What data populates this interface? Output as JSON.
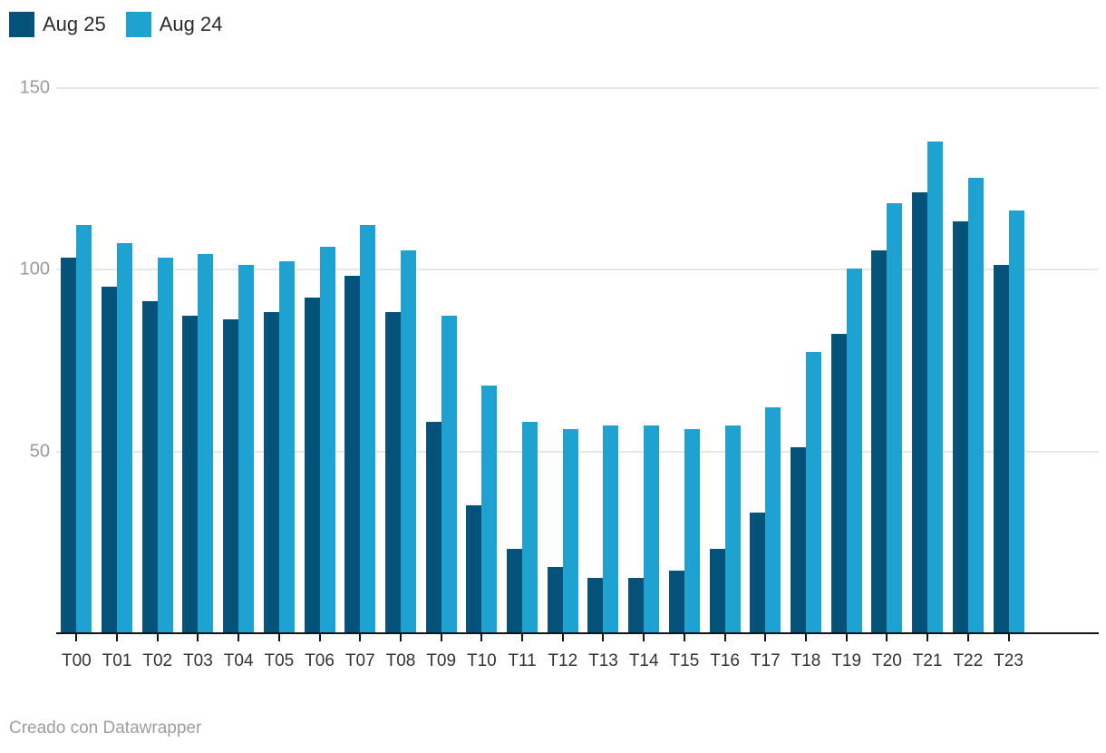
{
  "legend": {
    "items": [
      {
        "label": "Aug 25",
        "color": "#05527A"
      },
      {
        "label": "Aug 24",
        "color": "#1EA2D2"
      }
    ]
  },
  "footer": {
    "text": "Creado con Datawrapper"
  },
  "chart_data": {
    "type": "bar",
    "grouped": true,
    "title": "",
    "xlabel": "",
    "ylabel": "",
    "categories": [
      "T00",
      "T01",
      "T02",
      "T03",
      "T04",
      "T05",
      "T06",
      "T07",
      "T08",
      "T09",
      "T10",
      "T11",
      "T12",
      "T13",
      "T14",
      "T15",
      "T16",
      "T17",
      "T18",
      "T19",
      "T20",
      "T21",
      "T22",
      "T23"
    ],
    "series": [
      {
        "name": "Aug 25",
        "color": "#05527A",
        "values": [
          103,
          95,
          91,
          87,
          86,
          88,
          92,
          98,
          88,
          58,
          35,
          23,
          18,
          15,
          15,
          17,
          23,
          33,
          51,
          82,
          105,
          121,
          113,
          101
        ]
      },
      {
        "name": "Aug 24",
        "color": "#1EA2D2",
        "values": [
          112,
          107,
          103,
          104,
          101,
          102,
          106,
          112,
          105,
          87,
          68,
          58,
          56,
          57,
          57,
          56,
          57,
          62,
          77,
          100,
          118,
          135,
          125,
          116
        ]
      }
    ],
    "ylim": [
      0,
      150
    ],
    "yticks": [
      50,
      100,
      150
    ],
    "grid": "horizontal",
    "legend_position": "top-left",
    "attribution": "Creado con Datawrapper"
  }
}
